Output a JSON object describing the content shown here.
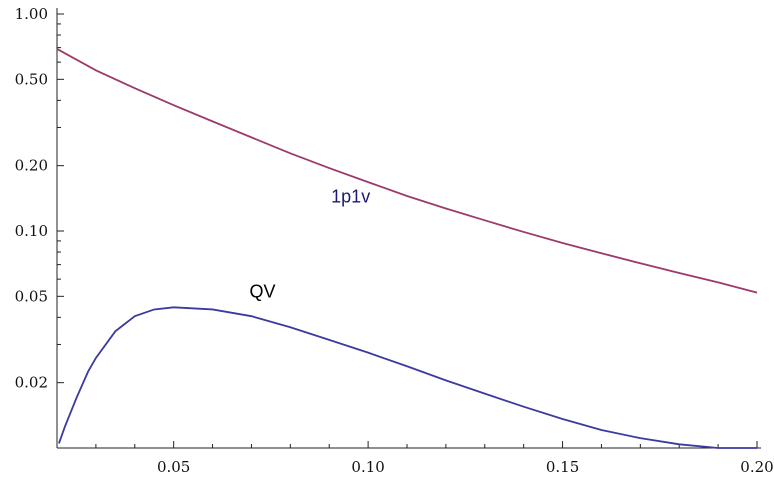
{
  "chart_data": {
    "type": "line",
    "title": "",
    "xlabel": "",
    "ylabel": "",
    "y_scale": "log",
    "xlim": [
      0.02,
      0.2
    ],
    "ylim": [
      0.01,
      1.0
    ],
    "grid": false,
    "x_ticks": [
      {
        "value": 0.05,
        "label": "0.05"
      },
      {
        "value": 0.1,
        "label": "0.10"
      },
      {
        "value": 0.15,
        "label": "0.15"
      },
      {
        "value": 0.2,
        "label": "0.20"
      }
    ],
    "y_ticks": [
      {
        "value": 1.0,
        "label": "1.00"
      },
      {
        "value": 0.5,
        "label": "0.50"
      },
      {
        "value": 0.2,
        "label": "0.20"
      },
      {
        "value": 0.1,
        "label": "0.10"
      },
      {
        "value": 0.05,
        "label": "0.05"
      },
      {
        "value": 0.02,
        "label": "0.02"
      }
    ],
    "series": [
      {
        "name": "1p1v",
        "color": "#9b3a6b",
        "label_color": "#1a1a6e",
        "x": [
          0.02,
          0.03,
          0.04,
          0.05,
          0.06,
          0.07,
          0.08,
          0.09,
          0.1,
          0.11,
          0.12,
          0.13,
          0.14,
          0.15,
          0.16,
          0.17,
          0.18,
          0.19,
          0.2
        ],
        "y": [
          0.69,
          0.55,
          0.455,
          0.38,
          0.32,
          0.27,
          0.228,
          0.195,
          0.168,
          0.145,
          0.127,
          0.112,
          0.099,
          0.088,
          0.079,
          0.071,
          0.064,
          0.058,
          0.052
        ]
      },
      {
        "name": "QV",
        "color": "#3a3aa0",
        "label_color": "#000000",
        "x": [
          0.0205,
          0.022,
          0.025,
          0.028,
          0.03,
          0.035,
          0.04,
          0.045,
          0.05,
          0.06,
          0.07,
          0.08,
          0.09,
          0.1,
          0.11,
          0.12,
          0.13,
          0.14,
          0.15,
          0.16,
          0.17,
          0.18,
          0.19,
          0.2
        ],
        "y": [
          0.0105,
          0.0125,
          0.017,
          0.0225,
          0.026,
          0.0345,
          0.0405,
          0.0435,
          0.0445,
          0.0435,
          0.0405,
          0.036,
          0.0315,
          0.0275,
          0.0238,
          0.0205,
          0.0178,
          0.0155,
          0.0136,
          0.0121,
          0.0111,
          0.0104,
          0.01,
          0.01
        ]
      }
    ]
  }
}
